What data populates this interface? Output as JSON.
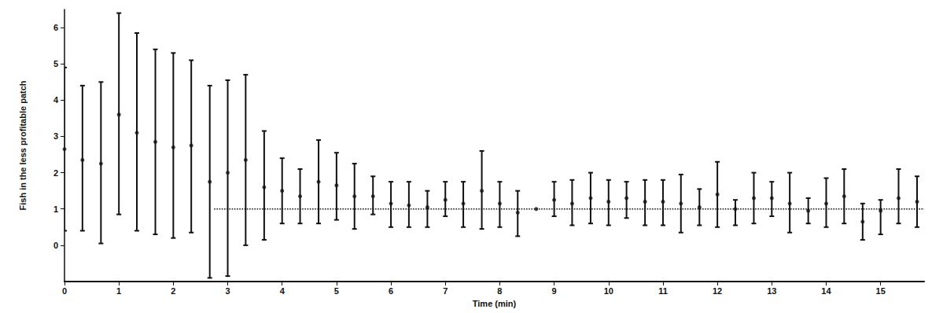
{
  "chart_data": {
    "type": "scatter",
    "x_label": "Time (min)",
    "y_label": "Fish in the less profitable patch",
    "x": [
      0,
      0.33,
      0.67,
      1,
      1.33,
      1.67,
      2,
      2.33,
      2.67,
      3,
      3.33,
      3.67,
      4,
      4.33,
      4.67,
      5,
      5.33,
      5.67,
      6,
      6.33,
      6.67,
      7,
      7.33,
      7.67,
      8,
      8.33,
      8.67,
      9,
      9.33,
      9.67,
      10,
      10.33,
      10.67,
      11,
      11.33,
      11.67,
      12,
      12.33,
      12.67,
      13,
      13.33,
      13.67,
      14,
      14.33,
      14.67,
      15,
      15.33,
      15.67
    ],
    "values": [
      2.65,
      2.35,
      2.25,
      3.6,
      3.1,
      2.85,
      2.7,
      2.75,
      1.75,
      2.0,
      2.35,
      1.6,
      1.5,
      1.35,
      1.75,
      1.65,
      1.35,
      1.35,
      1.15,
      1.1,
      1.05,
      1.25,
      1.15,
      1.5,
      1.15,
      0.9,
      1.0,
      1.25,
      1.15,
      1.3,
      1.2,
      1.3,
      1.2,
      1.2,
      1.15,
      1.05,
      1.4,
      1.0,
      1.3,
      1.3,
      1.15,
      0.95,
      1.15,
      1.35,
      0.65,
      0.95,
      1.3,
      1.2
    ],
    "error_lower": [
      0.4,
      0.4,
      0.05,
      0.85,
      0.4,
      0.3,
      0.2,
      0.35,
      -0.9,
      -0.85,
      0.0,
      0.15,
      0.6,
      0.6,
      0.6,
      0.7,
      0.45,
      0.85,
      0.5,
      0.5,
      0.5,
      0.8,
      0.5,
      0.45,
      0.5,
      0.25,
      1.0,
      0.8,
      0.55,
      0.6,
      0.55,
      0.75,
      0.55,
      0.55,
      0.35,
      0.55,
      0.5,
      0.55,
      0.6,
      0.8,
      0.35,
      0.6,
      0.5,
      0.6,
      0.15,
      0.3,
      0.6,
      0.5
    ],
    "error_upper": [
      4.9,
      4.4,
      4.5,
      6.4,
      5.85,
      5.4,
      5.3,
      5.1,
      4.4,
      4.55,
      4.7,
      3.15,
      2.4,
      2.1,
      2.9,
      2.55,
      2.25,
      1.9,
      1.75,
      1.75,
      1.5,
      1.75,
      1.75,
      2.6,
      1.75,
      1.5,
      1.0,
      1.75,
      1.8,
      2.0,
      1.8,
      1.75,
      1.8,
      1.8,
      1.95,
      1.55,
      2.3,
      1.25,
      2.0,
      1.75,
      2.0,
      1.3,
      1.85,
      2.1,
      1.15,
      1.25,
      2.1,
      1.9
    ],
    "color": "#111111",
    "marker": "circle",
    "xlim": [
      0,
      15.8
    ],
    "xticks": [
      0,
      1,
      2,
      3,
      4,
      5,
      6,
      7,
      8,
      9,
      10,
      11,
      12,
      13,
      14,
      15
    ],
    "ylim": [
      -1,
      6.5
    ],
    "yticks": [
      0,
      1,
      2,
      3,
      4,
      5,
      6
    ],
    "grid": false,
    "reference_line": {
      "value": 1,
      "from": 2.75,
      "line_style": "dotted"
    }
  }
}
